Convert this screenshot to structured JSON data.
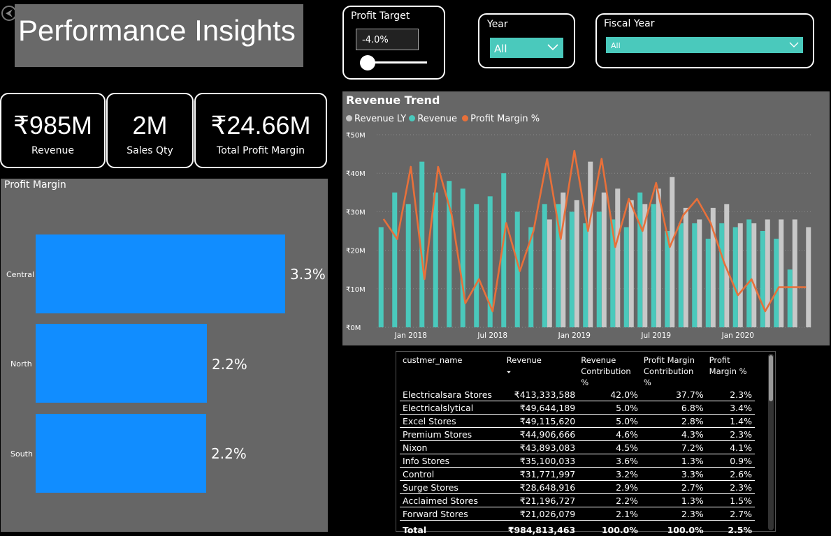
{
  "header": {
    "title": "Performance Insights",
    "back_glyph": "⮜"
  },
  "profit_target": {
    "title": "Profit Target",
    "value": "-4.0%",
    "slider_fraction": 0.0
  },
  "year_slicer": {
    "title": "Year",
    "selected": "All"
  },
  "fiscal_year_slicer": {
    "title": "Fiscal Year",
    "selected": "All"
  },
  "kpis": [
    {
      "value": "₹985M",
      "label": "Revenue"
    },
    {
      "value": "2M",
      "label": "Sales Qty"
    },
    {
      "value": "₹24.66M",
      "label": "Total Profit Margin"
    }
  ],
  "profit_margin_chart": {
    "title": "Profit Margin",
    "bars": [
      {
        "category": "Central",
        "label": "3.3%",
        "value": 3.3
      },
      {
        "category": "North",
        "label": "2.2%",
        "value": 2.2
      },
      {
        "category": "South",
        "label": "2.2%",
        "value": 2.2
      }
    ]
  },
  "revenue_trend": {
    "title": "Revenue Trend",
    "legend": [
      {
        "name": "Revenue LY",
        "color": "#c8c8c8"
      },
      {
        "name": "Revenue",
        "color": "#4ac9bc"
      },
      {
        "name": "Profit Margin %",
        "color": "#e8703a"
      }
    ],
    "y_ticks": [
      "₹0M",
      "₹10M",
      "₹20M",
      "₹30M",
      "₹40M",
      "₹50M"
    ],
    "x_ticks": [
      {
        "label": "Jan 2018",
        "index": 2
      },
      {
        "label": "Jul 2018",
        "index": 8
      },
      {
        "label": "Jan 2019",
        "index": 14
      },
      {
        "label": "Jul 2019",
        "index": 20
      },
      {
        "label": "Jan 2020",
        "index": 26
      }
    ]
  },
  "chart_data": {
    "type": "bar",
    "title": "Revenue Trend",
    "ylim": [
      0,
      50
    ],
    "yunit": "₹M",
    "series": [
      {
        "name": "Revenue LY",
        "values": [
          0,
          0,
          0,
          0,
          0,
          0,
          0,
          0,
          0,
          0,
          0,
          0,
          28,
          35,
          33,
          43,
          35,
          36,
          33,
          32,
          36,
          39,
          31,
          28,
          31,
          32,
          27,
          27,
          28,
          28,
          28,
          26
        ]
      },
      {
        "name": "Revenue",
        "values": [
          26,
          35,
          32,
          43,
          35,
          38,
          36,
          32,
          34,
          40,
          30,
          26,
          32,
          32,
          30,
          27,
          30,
          28,
          26,
          35,
          32,
          25,
          27,
          27,
          23,
          27,
          26,
          28,
          25,
          23,
          15,
          0
        ]
      },
      {
        "name": "Profit Margin %",
        "values": [
          0.15,
          -0.1,
          0.8,
          -0.6,
          0.8,
          0.2,
          -0.9,
          -0.6,
          -1.0,
          0.1,
          -0.5,
          0.0,
          0.9,
          -0.1,
          1.0,
          0.0,
          0.9,
          -0.2,
          0.4,
          0.0,
          0.6,
          -0.2,
          0.2,
          0.4,
          0.1,
          -0.4,
          -0.8,
          -0.6,
          -1.0,
          -0.7,
          -0.7,
          -0.7
        ]
      }
    ],
    "legend_position": "top-left",
    "grid": true
  },
  "table": {
    "headers": [
      "custmer_name",
      "Revenue",
      "Revenue Contribution %",
      "Profit Margin Contribution %",
      "Profit Margin %"
    ],
    "sort_glyph": "⏷",
    "rows": [
      [
        "Electricalsara Stores",
        "₹413,333,588",
        "42.0%",
        "37.7%",
        "2.3%"
      ],
      [
        "Electricalslytical",
        "₹49,644,189",
        "5.0%",
        "6.8%",
        "3.4%"
      ],
      [
        "Excel Stores",
        "₹49,115,620",
        "5.0%",
        "2.8%",
        "1.4%"
      ],
      [
        "Premium Stores",
        "₹44,906,666",
        "4.6%",
        "4.3%",
        "2.3%"
      ],
      [
        "Nixon",
        "₹43,893,083",
        "4.5%",
        "7.2%",
        "4.1%"
      ],
      [
        "Info Stores",
        "₹35,100,033",
        "3.6%",
        "1.3%",
        "0.9%"
      ],
      [
        "Control",
        "₹31,771,997",
        "3.2%",
        "3.3%",
        "2.6%"
      ],
      [
        "Surge Stores",
        "₹28,648,916",
        "2.9%",
        "2.7%",
        "2.3%"
      ],
      [
        "Acclaimed Stores",
        "₹21,196,727",
        "2.2%",
        "1.3%",
        "1.5%"
      ],
      [
        "Forward Stores",
        "₹21,026,079",
        "2.1%",
        "2.3%",
        "2.7%"
      ]
    ],
    "total": [
      "Total",
      "₹984,813,463",
      "100.0%",
      "100.0%",
      "2.5%"
    ]
  }
}
